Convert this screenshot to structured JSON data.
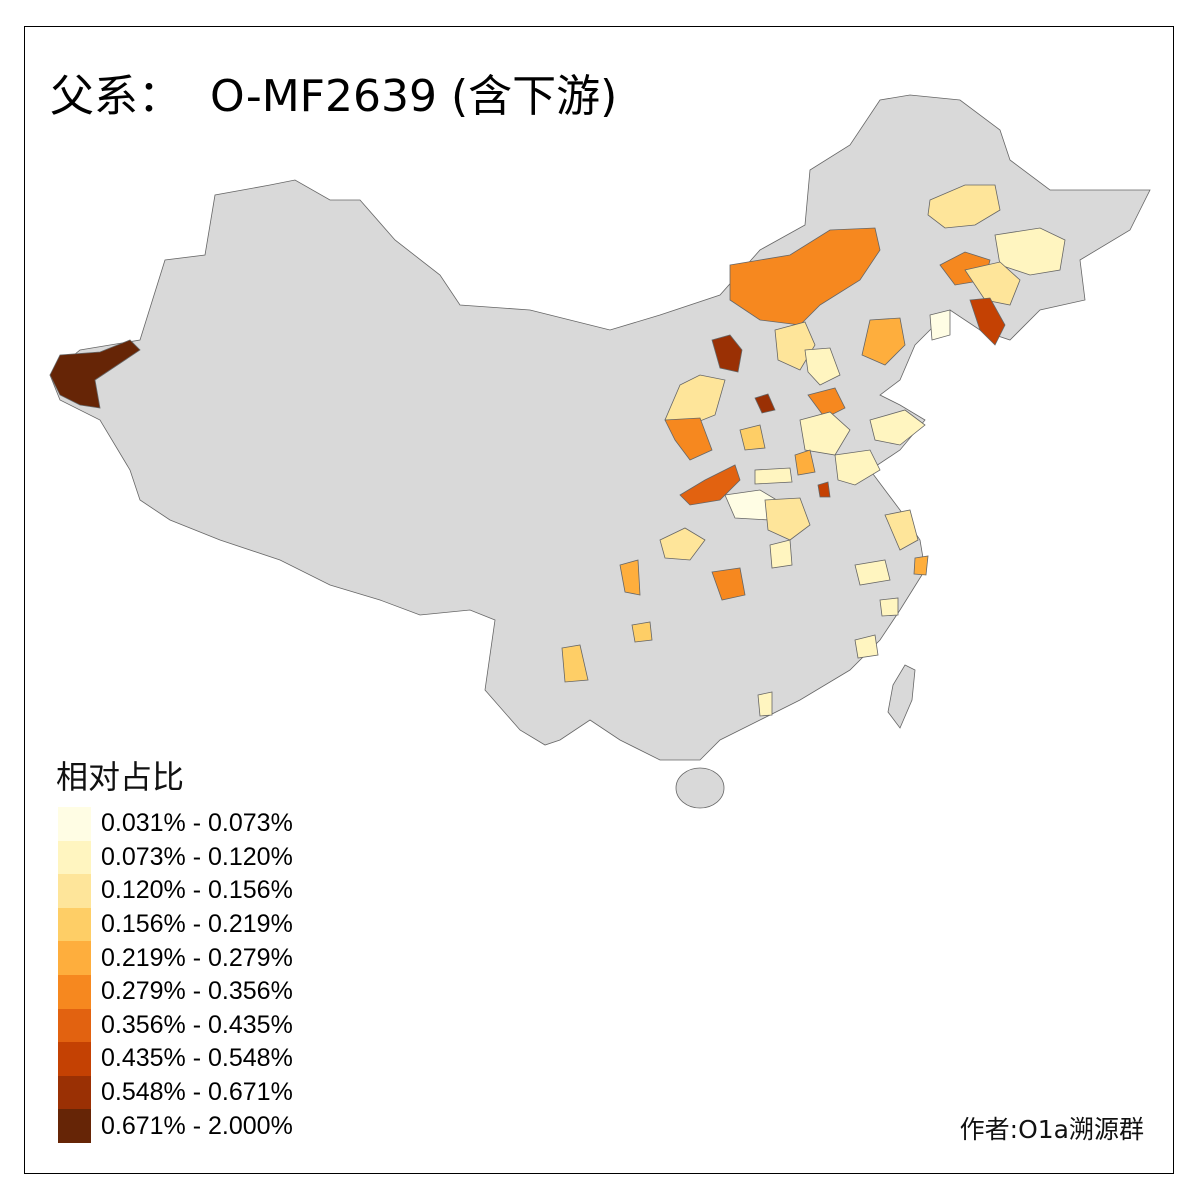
{
  "title": "父系：  O-MF2639 (含下游)",
  "legend": {
    "title": "相对占比",
    "items": [
      {
        "label": "0.031% - 0.073%",
        "color": "#FFFDE4"
      },
      {
        "label": "0.073% - 0.120%",
        "color": "#FFF5C0"
      },
      {
        "label": "0.120% - 0.156%",
        "color": "#FEE59A"
      },
      {
        "label": "0.156% - 0.219%",
        "color": "#FECE66"
      },
      {
        "label": "0.219% - 0.279%",
        "color": "#FEAE3D"
      },
      {
        "label": "0.279% - 0.356%",
        "color": "#F6881F"
      },
      {
        "label": "0.356% - 0.435%",
        "color": "#E26210"
      },
      {
        "label": "0.435% - 0.548%",
        "color": "#C44103"
      },
      {
        "label": "0.548% - 0.671%",
        "color": "#9A3004"
      },
      {
        "label": "0.671% - 2.000%",
        "color": "#662506"
      }
    ]
  },
  "no_data_color": "#D9D9D9",
  "author": "作者:O1a溯源群"
}
